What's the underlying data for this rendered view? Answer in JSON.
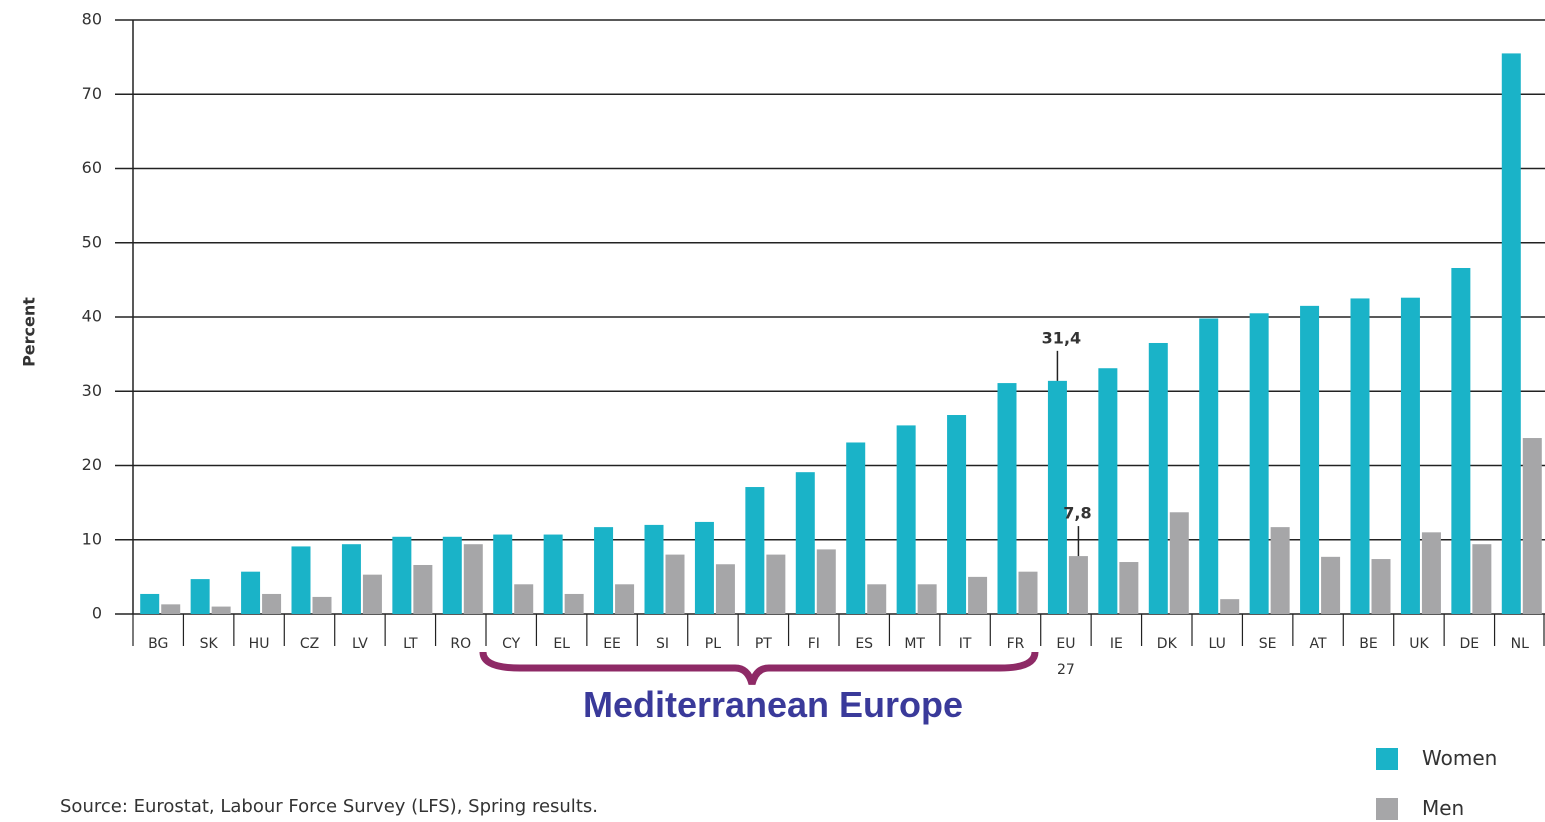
{
  "chart_data": {
    "type": "bar",
    "y_label": "Percent",
    "categories": [
      "BG",
      "SK",
      "HU",
      "CZ",
      "LV",
      "LT",
      "RO",
      "CY",
      "EL",
      "EE",
      "SI",
      "PL",
      "PT",
      "FI",
      "ES",
      "MT",
      "IT",
      "FR",
      "EU 27",
      "IE",
      "DK",
      "LU",
      "SE",
      "AT",
      "BE",
      "UK",
      "DE",
      "NL"
    ],
    "series": [
      {
        "name": "Women",
        "color": "#1ab3c8",
        "values": [
          2.7,
          4.7,
          5.7,
          9.1,
          9.4,
          10.4,
          10.4,
          10.7,
          10.7,
          11.7,
          12.0,
          12.4,
          17.1,
          19.1,
          23.1,
          25.4,
          26.8,
          31.1,
          31.4,
          33.1,
          36.5,
          39.8,
          40.5,
          41.5,
          42.5,
          42.6,
          46.6,
          75.5
        ],
        "value_labels": [
          null,
          null,
          null,
          null,
          null,
          null,
          null,
          null,
          null,
          null,
          null,
          null,
          null,
          null,
          null,
          null,
          null,
          null,
          "31,4",
          null,
          null,
          null,
          null,
          null,
          null,
          null,
          null,
          null
        ]
      },
      {
        "name": "Men",
        "color": "#a6a6a8",
        "values": [
          1.3,
          1.0,
          2.7,
          2.3,
          5.3,
          6.6,
          9.4,
          4.0,
          2.7,
          4.0,
          8.0,
          6.7,
          8.0,
          8.7,
          4.0,
          4.0,
          5.0,
          5.7,
          7.8,
          7.0,
          13.7,
          2.0,
          11.7,
          7.7,
          7.4,
          11.0,
          9.4,
          23.7
        ],
        "value_labels": [
          null,
          null,
          null,
          null,
          null,
          null,
          null,
          null,
          null,
          null,
          null,
          null,
          null,
          null,
          null,
          null,
          null,
          null,
          "7,8",
          null,
          null,
          null,
          null,
          null,
          null,
          null,
          null,
          null
        ]
      }
    ],
    "ylim": [
      0,
      80
    ],
    "yticks": [
      0,
      10,
      20,
      30,
      40,
      50,
      60,
      70,
      80
    ],
    "grid": true,
    "bracket_label": "Mediterranean Europe",
    "source": "Source: Eurostat, Labour Force Survey (LFS), Spring results."
  }
}
